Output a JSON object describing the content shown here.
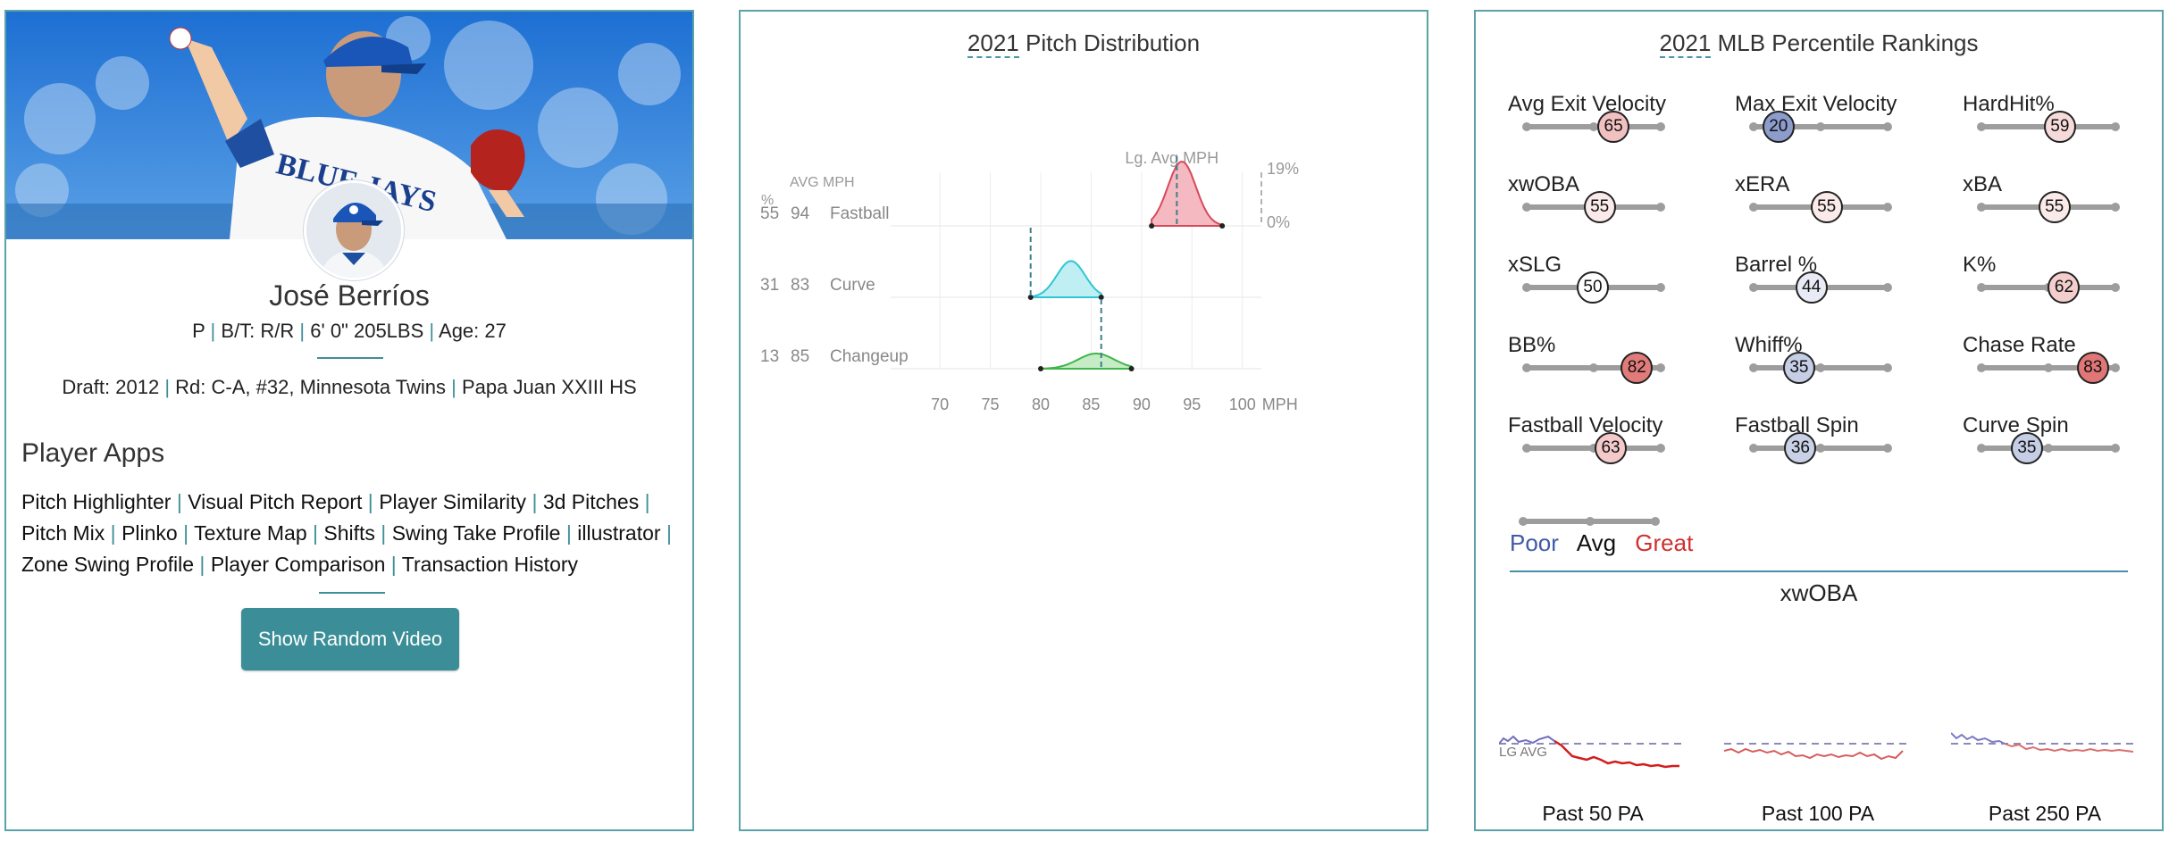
{
  "player": {
    "name": "José Berríos",
    "bio": {
      "pos": "P",
      "bt": "B/T: R/R",
      "size": "6' 0\" 205LBS",
      "age": "Age: 27"
    },
    "draft": {
      "label": "Draft:",
      "year": "2012",
      "round": "Rd: C-A, #32,",
      "team": "Minnesota Twins",
      "school": "Papa Juan XXIII HS"
    }
  },
  "apps": {
    "heading": "Player Apps",
    "items": [
      "Pitch Highlighter",
      "Visual Pitch Report",
      "Player Similarity",
      "3d Pitches",
      "Pitch Mix",
      "Plinko",
      "Texture Map",
      "Shifts",
      "Swing Take Profile",
      "illustrator",
      "Zone Swing Profile",
      "Player Comparison",
      "Transaction History"
    ],
    "button": "Show Random Video"
  },
  "pitch_panel": {
    "year": "2021",
    "title": "Pitch Distribution"
  },
  "rank_panel": {
    "year": "2021",
    "title": "MLB Percentile Rankings"
  },
  "colors": {
    "teal": "#3b8e97",
    "poor": "#3f5aa8",
    "great": "#d0302f"
  },
  "metrics": [
    {
      "label": "Avg Exit Velocity",
      "value": "65"
    },
    {
      "label": "Max Exit Velocity",
      "value": "20"
    },
    {
      "label": "HardHit%",
      "value": "59"
    },
    {
      "label": "xwOBA",
      "value": "55"
    },
    {
      "label": "xERA",
      "value": "55"
    },
    {
      "label": "xBA",
      "value": "55"
    },
    {
      "label": "xSLG",
      "value": "50"
    },
    {
      "label": "Barrel %",
      "value": "44"
    },
    {
      "label": "K%",
      "value": "62"
    },
    {
      "label": "BB%",
      "value": "82"
    },
    {
      "label": "Whiff%",
      "value": "35"
    },
    {
      "label": "Chase Rate",
      "value": "83"
    },
    {
      "label": "Fastball Velocity",
      "value": "63"
    },
    {
      "label": "Fastball Spin",
      "value": "36"
    },
    {
      "label": "Curve Spin",
      "value": "35"
    }
  ],
  "legend": {
    "poor": "Poor",
    "avg": "Avg",
    "great": "Great"
  },
  "xwoba": {
    "title": "xwOBA",
    "lg_avg": "LG AVG",
    "windows": [
      "Past 50 PA",
      "Past 100 PA",
      "Past 250 PA"
    ]
  },
  "chart_data": {
    "type": "area",
    "title": "2021 Pitch Distribution",
    "header_pct": "%",
    "header_avg": "AVG MPH",
    "lg_avg_label": "Lg. Avg MPH",
    "scale_top": "19%",
    "scale_bottom": "0%",
    "xunit": "MPH",
    "xlim": [
      66,
      101
    ],
    "xticks": [
      70,
      75,
      80,
      85,
      90,
      95,
      100
    ],
    "series": [
      {
        "name": "Fastball",
        "pct": 55,
        "avg_mph": 94,
        "min": 91,
        "max": 98,
        "peak": 94,
        "lg_avg": 93.5,
        "color": "#d8495a",
        "fill": "#f4b9c1"
      },
      {
        "name": "Curve",
        "pct": 31,
        "avg_mph": 83,
        "min": 79,
        "max": 86,
        "peak": 83,
        "lg_avg": 79,
        "color": "#2fc6d4",
        "fill": "#bfeef3"
      },
      {
        "name": "Changeup",
        "pct": 13,
        "avg_mph": 85,
        "min": 80,
        "max": 89,
        "peak": 85.5,
        "lg_avg": 86,
        "color": "#3fb54a",
        "fill": "#c6ecc5"
      }
    ]
  }
}
